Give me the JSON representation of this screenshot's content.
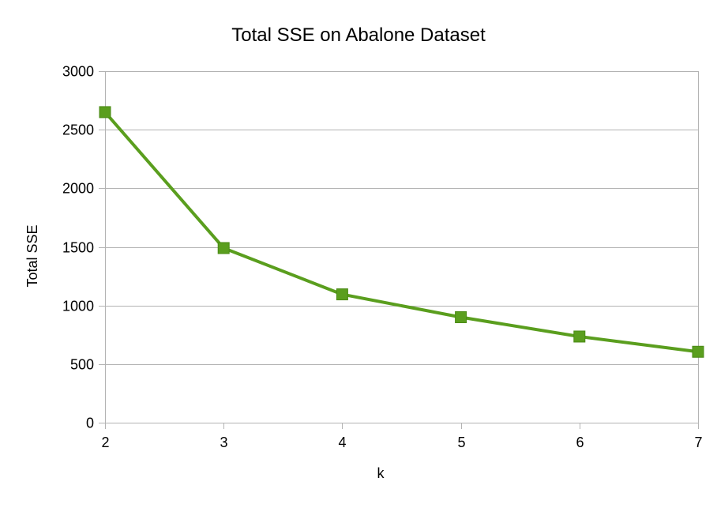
{
  "chart_data": {
    "type": "line",
    "title": "Total SSE on Abalone Dataset",
    "xlabel": "k",
    "ylabel": "Total SSE",
    "x": [
      2,
      3,
      4,
      5,
      6,
      7
    ],
    "x_tick_labels": [
      "2",
      "3",
      "4",
      "5",
      "6",
      "7"
    ],
    "series": [
      {
        "values": [
          2650,
          1490,
          1095,
          900,
          735,
          605
        ],
        "color": "#5a9e1e",
        "marker": "square"
      }
    ],
    "xlim": [
      2,
      7
    ],
    "ylim": [
      0,
      3000
    ],
    "y_ticks": [
      0,
      500,
      1000,
      1500,
      2000,
      2500,
      3000
    ],
    "y_tick_labels": [
      "0",
      "500",
      "1000",
      "1500",
      "2000",
      "2500",
      "3000"
    ],
    "grid": "horizontal",
    "legend": "none",
    "colors": {
      "series": "#5a9e1e",
      "marker_fill": "#5a9e1e",
      "gridline": "#b3b3b3",
      "background": "#ffffff"
    }
  }
}
